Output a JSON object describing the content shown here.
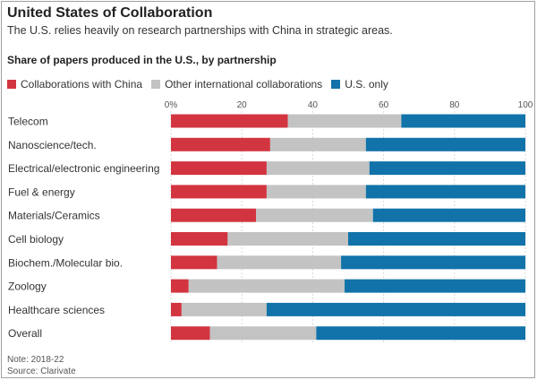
{
  "header": {
    "title": "United States of Collaboration",
    "subtitle": "The U.S. relies heavily on research partnerships with China in strategic areas.",
    "chart_heading": "Share of papers produced in the U.S., by partnership"
  },
  "footer": {
    "note": "Note: 2018-22",
    "source": "Source: Clarivate"
  },
  "chart_data": {
    "type": "bar",
    "orientation": "horizontal",
    "stacked": true,
    "title": "Share of papers produced in the U.S., by partnership",
    "xlabel": "",
    "ylabel": "",
    "xlim": [
      0,
      100
    ],
    "x_ticks": [
      0,
      20,
      40,
      60,
      80,
      100
    ],
    "x_tick_labels": [
      "0%",
      "20",
      "40",
      "60",
      "80",
      "100"
    ],
    "grid": true,
    "legend_position": "top",
    "categories": [
      "Telecom",
      "Nanoscience/tech.",
      "Electrical/electronic engineering",
      "Fuel & energy",
      "Materials/Ceramics",
      "Cell biology",
      "Biochem./Molecular bio.",
      "Zoology",
      "Healthcare sciences",
      "Overall"
    ],
    "series": [
      {
        "name": "Collaborations with China",
        "color": "#d23540",
        "values": [
          33,
          28,
          27,
          27,
          24,
          16,
          13,
          5,
          3,
          11
        ]
      },
      {
        "name": "Other international collaborations",
        "color": "#c3c3c3",
        "values": [
          32,
          27,
          29,
          28,
          33,
          34,
          35,
          44,
          24,
          30
        ]
      },
      {
        "name": "U.S. only",
        "color": "#1173a9",
        "values": [
          35,
          45,
          44,
          45,
          43,
          50,
          52,
          51,
          73,
          59
        ]
      }
    ]
  }
}
